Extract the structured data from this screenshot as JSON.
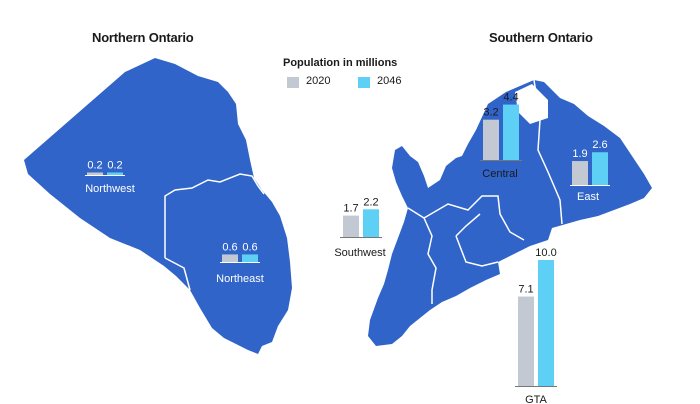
{
  "titles": {
    "north": "Northern Ontario",
    "south": "Southern Ontario"
  },
  "legend": {
    "title": "Population in millions",
    "items": [
      {
        "label": "2020",
        "color": "#c3c9d2"
      },
      {
        "label": "2046",
        "color": "#5fd0f5"
      }
    ]
  },
  "colors": {
    "land": "#3064c8",
    "border": "#ffffff"
  },
  "regions": [
    {
      "name": "Northwest",
      "v2020": 0.2,
      "v2046": 0.2,
      "v2020_label": "0.2",
      "v2046_label": "0.2",
      "text": "white"
    },
    {
      "name": "Northeast",
      "v2020": 0.6,
      "v2046": 0.6,
      "v2020_label": "0.6",
      "v2046_label": "0.6",
      "text": "white"
    },
    {
      "name": "Southwest",
      "v2020": 1.7,
      "v2046": 2.2,
      "v2020_label": "1.7",
      "v2046_label": "2.2",
      "text": "dark"
    },
    {
      "name": "Central",
      "v2020": 3.2,
      "v2046": 4.4,
      "v2020_label": "3.2",
      "v2046_label": "4.4",
      "text": "dark"
    },
    {
      "name": "East",
      "v2020": 1.9,
      "v2046": 2.6,
      "v2020_label": "1.9",
      "v2046_label": "2.6",
      "text": "white"
    },
    {
      "name": "GTA",
      "v2020": 7.1,
      "v2046": 10.0,
      "v2020_label": "7.1",
      "v2046_label": "10.0",
      "text": "dark"
    }
  ]
}
